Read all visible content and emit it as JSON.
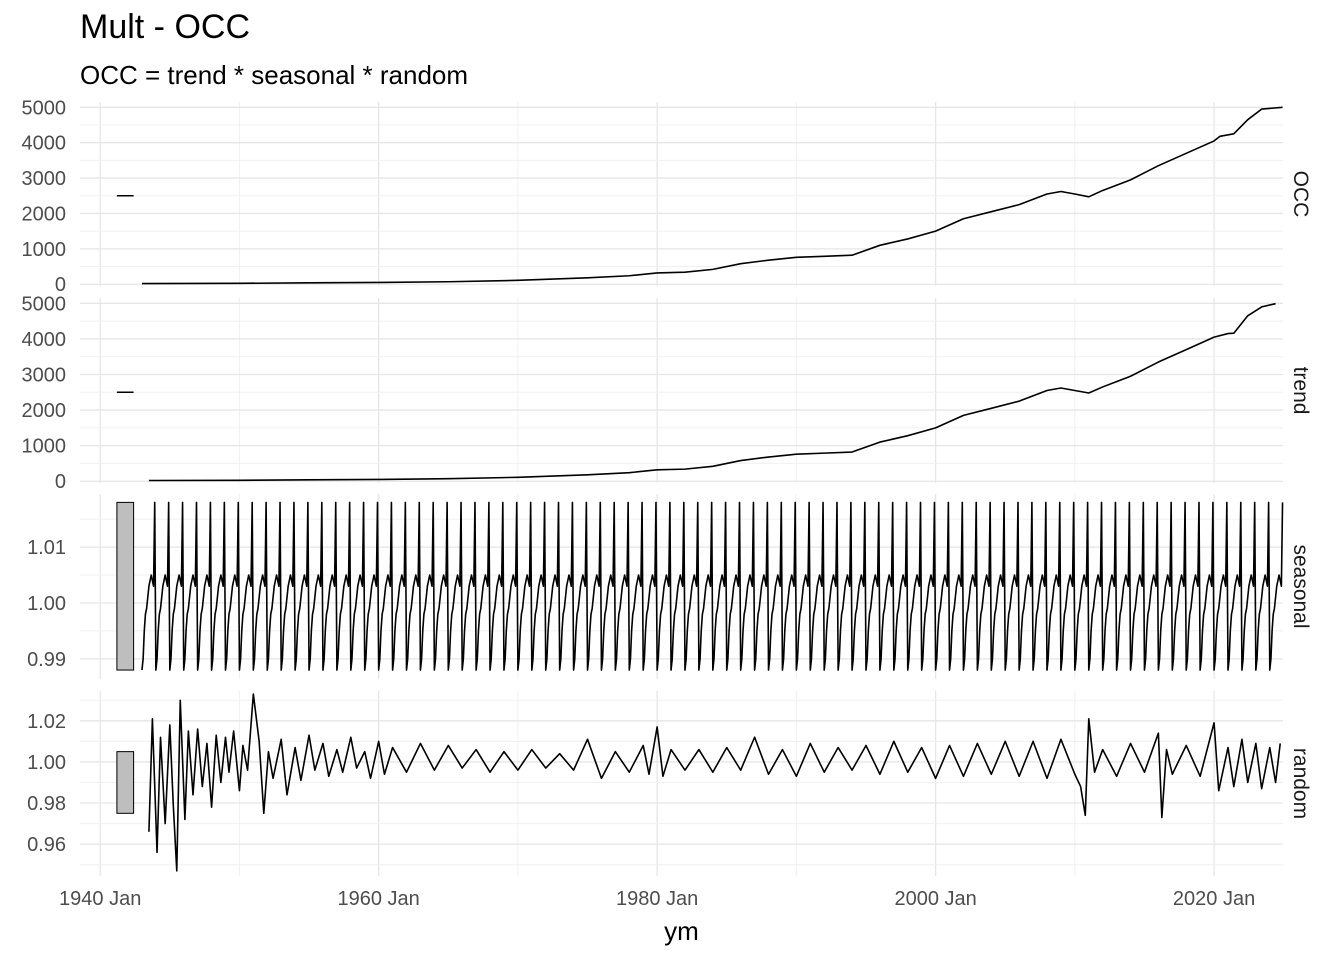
{
  "chart_data": {
    "type": "line",
    "title": "Mult - OCC",
    "subtitle": "OCC = trend * seasonal * random",
    "xlabel": "ym",
    "x_ticks": [
      "1940 Jan",
      "1960 Jan",
      "1980 Jan",
      "2000 Jan",
      "2020 Jan"
    ],
    "x_range": [
      "1943 Jan",
      "2024 Dec"
    ],
    "grid": true,
    "legend": "none",
    "line_color": "#000000",
    "panels": [
      {
        "name": "OCC",
        "y_ticks": [
          "0",
          "1000",
          "2000",
          "3000",
          "4000",
          "5000"
        ],
        "ylim": [
          -50,
          5150
        ],
        "range_bar_center": 2500,
        "points": [
          [
            "1943-01",
            20
          ],
          [
            "1950-01",
            25
          ],
          [
            "1955-01",
            40
          ],
          [
            "1960-01",
            50
          ],
          [
            "1965-01",
            70
          ],
          [
            "1970-01",
            110
          ],
          [
            "1975-01",
            180
          ],
          [
            "1978-01",
            240
          ],
          [
            "1980-01",
            320
          ],
          [
            "1982-01",
            340
          ],
          [
            "1984-01",
            420
          ],
          [
            "1986-01",
            580
          ],
          [
            "1988-01",
            680
          ],
          [
            "1990-01",
            760
          ],
          [
            "1992-01",
            790
          ],
          [
            "1994-01",
            820
          ],
          [
            "1996-01",
            1100
          ],
          [
            "1998-01",
            1280
          ],
          [
            "2000-01",
            1500
          ],
          [
            "2002-01",
            1850
          ],
          [
            "2004-01",
            2050
          ],
          [
            "2006-01",
            2250
          ],
          [
            "2008-01",
            2550
          ],
          [
            "2009-01",
            2620
          ],
          [
            "2010-01",
            2550
          ],
          [
            "2011-01",
            2470
          ],
          [
            "2012-01",
            2650
          ],
          [
            "2014-01",
            2950
          ],
          [
            "2016-01",
            3350
          ],
          [
            "2018-01",
            3700
          ],
          [
            "2020-01",
            4050
          ],
          [
            "2020-06",
            4180
          ],
          [
            "2021-06",
            4250
          ],
          [
            "2022-06",
            4650
          ],
          [
            "2023-06",
            4950
          ],
          [
            "2024-12",
            5000
          ]
        ]
      },
      {
        "name": "trend",
        "y_ticks": [
          "0",
          "1000",
          "2000",
          "3000",
          "4000",
          "5000"
        ],
        "ylim": [
          -50,
          5150
        ],
        "range_bar_center": 2500,
        "points": [
          [
            "1943-07",
            20
          ],
          [
            "1950-01",
            25
          ],
          [
            "1955-01",
            40
          ],
          [
            "1960-01",
            50
          ],
          [
            "1965-01",
            70
          ],
          [
            "1970-01",
            110
          ],
          [
            "1975-01",
            180
          ],
          [
            "1978-01",
            240
          ],
          [
            "1980-01",
            320
          ],
          [
            "1982-01",
            340
          ],
          [
            "1984-01",
            420
          ],
          [
            "1986-01",
            580
          ],
          [
            "1988-01",
            680
          ],
          [
            "1990-01",
            760
          ],
          [
            "1992-01",
            790
          ],
          [
            "1994-01",
            820
          ],
          [
            "1996-01",
            1100
          ],
          [
            "1998-01",
            1280
          ],
          [
            "2000-01",
            1500
          ],
          [
            "2002-01",
            1850
          ],
          [
            "2004-01",
            2050
          ],
          [
            "2006-01",
            2250
          ],
          [
            "2008-01",
            2550
          ],
          [
            "2009-01",
            2620
          ],
          [
            "2010-01",
            2550
          ],
          [
            "2011-01",
            2480
          ],
          [
            "2012-01",
            2650
          ],
          [
            "2014-01",
            2950
          ],
          [
            "2016-01",
            3350
          ],
          [
            "2018-01",
            3700
          ],
          [
            "2020-01",
            4050
          ],
          [
            "2021-01",
            4150
          ],
          [
            "2021-06",
            4160
          ],
          [
            "2022-06",
            4650
          ],
          [
            "2023-06",
            4900
          ],
          [
            "2024-06",
            4990
          ]
        ]
      },
      {
        "name": "seasonal",
        "y_ticks": [
          "0.99",
          "1.00",
          "1.01"
        ],
        "ylim": [
          0.9864,
          1.0195
        ],
        "range_bar": [
          0.988,
          1.018
        ],
        "series_start": "1943-01",
        "series_end": "2024-12",
        "monthly_pattern": [
          0.988,
          0.99,
          0.995,
          0.998,
          0.999,
          1.001,
          1.003,
          1.004,
          1.005,
          1.004,
          1.003,
          1.018
        ]
      },
      {
        "name": "random",
        "y_ticks": [
          "0.96",
          "0.98",
          "1.00",
          "1.02"
        ],
        "ylim": [
          0.9445,
          1.0345
        ],
        "range_bar": [
          0.975,
          1.005
        ],
        "points": [
          [
            "1943-07",
            0.966
          ],
          [
            "1943-10",
            1.021
          ],
          [
            "1944-02",
            0.956
          ],
          [
            "1944-05",
            1.012
          ],
          [
            "1944-09",
            0.97
          ],
          [
            "1945-01",
            1.018
          ],
          [
            "1945-04",
            0.979
          ],
          [
            "1945-07",
            0.947
          ],
          [
            "1945-10",
            1.03
          ],
          [
            "1946-02",
            0.972
          ],
          [
            "1946-05",
            1.015
          ],
          [
            "1946-09",
            0.984
          ],
          [
            "1947-01",
            1.016
          ],
          [
            "1947-05",
            0.988
          ],
          [
            "1947-09",
            1.009
          ],
          [
            "1948-01",
            0.978
          ],
          [
            "1948-05",
            1.013
          ],
          [
            "1948-09",
            0.99
          ],
          [
            "1949-01",
            1.012
          ],
          [
            "1949-04",
            0.995
          ],
          [
            "1949-08",
            1.015
          ],
          [
            "1950-01",
            0.986
          ],
          [
            "1950-04",
            1.008
          ],
          [
            "1950-08",
            0.996
          ],
          [
            "1951-01",
            1.033
          ],
          [
            "1951-06",
            1.01
          ],
          [
            "1951-10",
            0.975
          ],
          [
            "1952-02",
            1.005
          ],
          [
            "1952-06",
            0.992
          ],
          [
            "1953-01",
            1.011
          ],
          [
            "1953-06",
            0.984
          ],
          [
            "1954-01",
            1.007
          ],
          [
            "1954-06",
            0.991
          ],
          [
            "1955-01",
            1.013
          ],
          [
            "1955-06",
            0.996
          ],
          [
            "1956-01",
            1.009
          ],
          [
            "1956-06",
            0.993
          ],
          [
            "1957-01",
            1.006
          ],
          [
            "1957-06",
            0.995
          ],
          [
            "1958-01",
            1.012
          ],
          [
            "1958-06",
            0.997
          ],
          [
            "1959-01",
            1.005
          ],
          [
            "1959-06",
            0.992
          ],
          [
            "1960-01",
            1.01
          ],
          [
            "1960-06",
            0.994
          ],
          [
            "1961-01",
            1.007
          ],
          [
            "1962-01",
            0.995
          ],
          [
            "1963-01",
            1.009
          ],
          [
            "1964-01",
            0.996
          ],
          [
            "1965-01",
            1.008
          ],
          [
            "1966-01",
            0.997
          ],
          [
            "1967-01",
            1.006
          ],
          [
            "1968-01",
            0.995
          ],
          [
            "1969-01",
            1.005
          ],
          [
            "1970-01",
            0.996
          ],
          [
            "1971-01",
            1.006
          ],
          [
            "1972-01",
            0.997
          ],
          [
            "1973-01",
            1.004
          ],
          [
            "1974-01",
            0.996
          ],
          [
            "1975-01",
            1.011
          ],
          [
            "1976-01",
            0.992
          ],
          [
            "1977-01",
            1.005
          ],
          [
            "1978-01",
            0.995
          ],
          [
            "1979-01",
            1.008
          ],
          [
            "1979-06",
            0.994
          ],
          [
            "1980-01",
            1.017
          ],
          [
            "1980-06",
            0.993
          ],
          [
            "1981-01",
            1.006
          ],
          [
            "1982-01",
            0.996
          ],
          [
            "1983-01",
            1.006
          ],
          [
            "1984-01",
            0.995
          ],
          [
            "1985-01",
            1.007
          ],
          [
            "1986-01",
            0.996
          ],
          [
            "1987-01",
            1.012
          ],
          [
            "1988-01",
            0.994
          ],
          [
            "1989-01",
            1.006
          ],
          [
            "1990-01",
            0.993
          ],
          [
            "1991-01",
            1.009
          ],
          [
            "1992-01",
            0.995
          ],
          [
            "1993-01",
            1.007
          ],
          [
            "1994-01",
            0.996
          ],
          [
            "1995-01",
            1.008
          ],
          [
            "1996-01",
            0.994
          ],
          [
            "1997-01",
            1.01
          ],
          [
            "1998-01",
            0.995
          ],
          [
            "1999-01",
            1.007
          ],
          [
            "2000-01",
            0.992
          ],
          [
            "2001-01",
            1.008
          ],
          [
            "2002-01",
            0.993
          ],
          [
            "2003-01",
            1.009
          ],
          [
            "2004-01",
            0.994
          ],
          [
            "2005-01",
            1.01
          ],
          [
            "2006-01",
            0.993
          ],
          [
            "2007-01",
            1.01
          ],
          [
            "2008-01",
            0.992
          ],
          [
            "2009-01",
            1.011
          ],
          [
            "2010-01",
            0.994
          ],
          [
            "2010-06",
            0.988
          ],
          [
            "2010-10",
            0.974
          ],
          [
            "2011-01",
            1.021
          ],
          [
            "2011-06",
            0.995
          ],
          [
            "2012-01",
            1.006
          ],
          [
            "2013-01",
            0.993
          ],
          [
            "2014-01",
            1.009
          ],
          [
            "2015-01",
            0.995
          ],
          [
            "2016-01",
            1.014
          ],
          [
            "2016-04",
            0.973
          ],
          [
            "2016-08",
            1.006
          ],
          [
            "2017-01",
            0.994
          ],
          [
            "2018-01",
            1.008
          ],
          [
            "2019-01",
            0.993
          ],
          [
            "2020-01",
            1.019
          ],
          [
            "2020-05",
            0.986
          ],
          [
            "2021-01",
            1.007
          ],
          [
            "2021-06",
            0.988
          ],
          [
            "2022-01",
            1.011
          ],
          [
            "2022-06",
            0.99
          ],
          [
            "2023-01",
            1.009
          ],
          [
            "2023-06",
            0.987
          ],
          [
            "2024-01",
            1.007
          ],
          [
            "2024-06",
            0.99
          ],
          [
            "2024-10",
            1.009
          ]
        ]
      }
    ]
  }
}
